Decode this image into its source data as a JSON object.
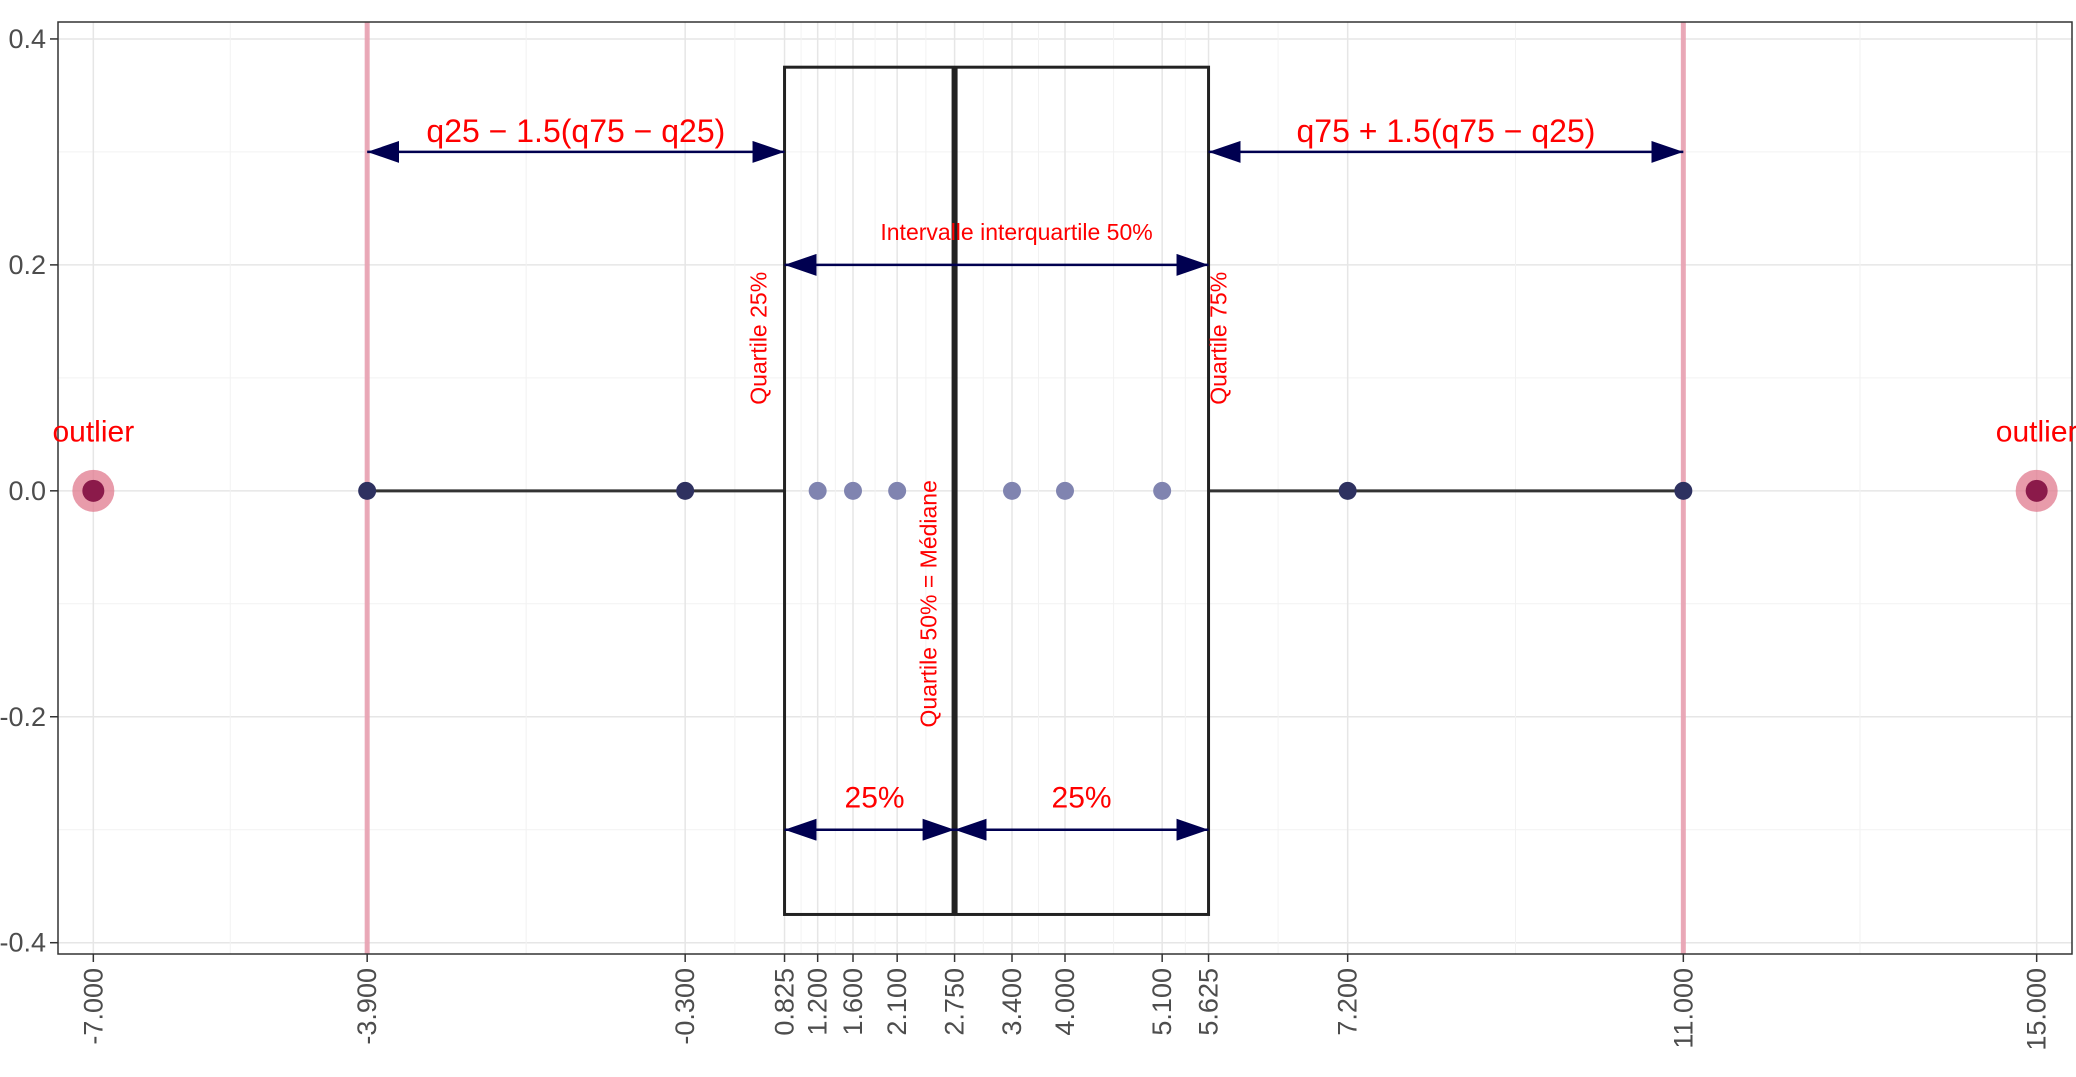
{
  "chart_data": {
    "type": "scatter",
    "title": "",
    "xlabel": "",
    "ylabel": "",
    "xlim": [
      -7.4,
      15.4
    ],
    "ylim": [
      -0.41,
      0.415
    ],
    "y_ticks": [
      0.4,
      0.2,
      0.0,
      -0.2,
      -0.4
    ],
    "y_tick_labels": [
      "0.4",
      "0.2",
      "0.0",
      "-0.2",
      "-0.4"
    ],
    "x_ticks": [
      -7.0,
      -3.9,
      -0.3,
      0.825,
      1.2,
      1.6,
      2.1,
      2.75,
      3.4,
      4.0,
      5.1,
      5.625,
      7.2,
      11.0,
      15.0
    ],
    "x_tick_labels": [
      "-7.000",
      "-3.900",
      "-0.300",
      "0.825",
      "1.200",
      "1.600",
      "2.100",
      "2.750",
      "3.400",
      "4.000",
      "5.100",
      "5.625",
      "7.200",
      "11.000",
      "15.000"
    ],
    "grid": true,
    "box": {
      "q25": 0.825,
      "median": 2.75,
      "q75": 5.625,
      "ymin": -0.375,
      "ymax": 0.375
    },
    "whiskers": {
      "lower": -3.9,
      "upper": 11.0,
      "lower_inner": -0.3,
      "upper_inner": 7.2
    },
    "fence_lines": [
      -3.9,
      11.0
    ],
    "series": [
      {
        "role": "outliers",
        "x": [
          -7.0,
          15.0
        ],
        "y": [
          0,
          0
        ]
      },
      {
        "role": "whisker-points",
        "x": [
          -3.9,
          -0.3,
          7.2,
          11.0
        ],
        "y": [
          0,
          0,
          0,
          0
        ]
      },
      {
        "role": "inner-points",
        "x": [
          1.2,
          1.6,
          2.1,
          3.4,
          4.0,
          5.1
        ],
        "y": [
          0,
          0,
          0,
          0,
          0,
          0
        ]
      }
    ],
    "annotations": {
      "outlier_left": "outlier",
      "outlier_right": "outlier",
      "iqr_label": "Intervalle interquartile 50%",
      "q25_label": "Quartile 25%",
      "q75_label": "Quartile 75%",
      "median_label": "Quartile 50% = Médiane",
      "pct_left": "25%",
      "pct_right": "25%",
      "lower_fence_formula": "q25 − 1.5(q75 − q25)",
      "upper_fence_formula": "q75 + 1.5(q75 − q25)"
    },
    "colors": {
      "annotation": "#ff0000",
      "arrow": "#000050",
      "fence": "#e8a0b0",
      "box": "#222222",
      "outlier": "#8b1a4a",
      "whisker_point": "#2e3160",
      "inner_point": "#8084b0"
    }
  }
}
